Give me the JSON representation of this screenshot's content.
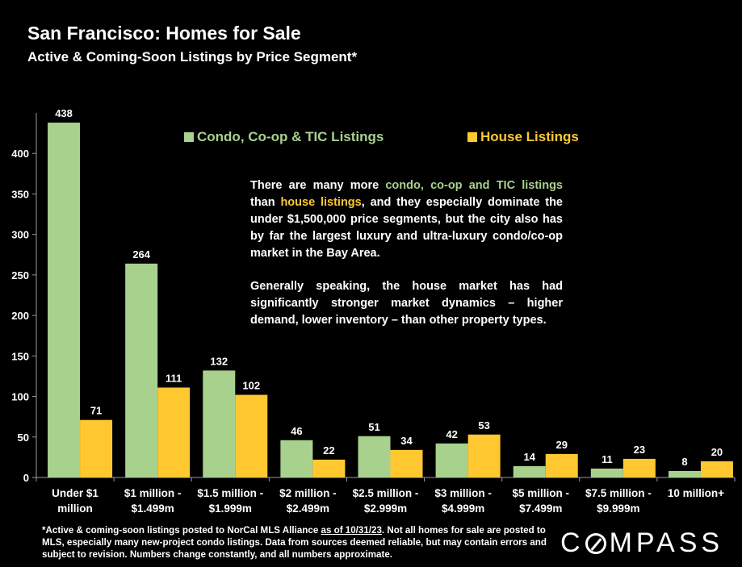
{
  "chart_data": {
    "type": "bar",
    "title": "San Francisco: Homes for Sale",
    "subtitle": "Active & Coming-Soon Listings by Price Segment*",
    "categories": [
      [
        "Under $1",
        "million"
      ],
      [
        "$1 million -",
        "$1.499m"
      ],
      [
        "$1.5 million -",
        "$1.999m"
      ],
      [
        "$2 million -",
        "$2.499m"
      ],
      [
        "$2.5 million -",
        "$2.999m"
      ],
      [
        "$3 million -",
        "$4.999m"
      ],
      [
        "$5 million -",
        "$7.499m"
      ],
      [
        "$7.5 million -",
        "$9.999m"
      ],
      [
        "10 million+"
      ]
    ],
    "series": [
      {
        "name": "Condo, Co-op & TIC Listings",
        "color": "#a9d18e",
        "values": [
          438,
          264,
          132,
          46,
          51,
          42,
          14,
          11,
          8
        ]
      },
      {
        "name": "House Listings",
        "color": "#ffc830",
        "values": [
          71,
          111,
          102,
          22,
          34,
          53,
          29,
          23,
          20
        ]
      }
    ],
    "ylim": [
      0,
      450
    ],
    "yticks": [
      0,
      50,
      100,
      150,
      200,
      250,
      300,
      350,
      400
    ],
    "legend_position": "top-center",
    "grid": false,
    "annotation": {
      "paragraph1": [
        {
          "text": "There are many more ",
          "color": "#ffffff"
        },
        {
          "text": "condo, co-op and TIC listings",
          "color": "#a9d18e"
        },
        {
          "text": " than ",
          "color": "#ffffff"
        },
        {
          "text": "house listings",
          "color": "#ffc830"
        },
        {
          "text": ", and they especially dominate the under $1,500,000 price segments, but the city also has by far the largest luxury and ultra-luxury condo/co-op market in the Bay Area.",
          "color": "#ffffff"
        }
      ],
      "paragraph2": "Generally speaking, the house market has had significantly stronger market dynamics – higher demand, lower inventory – than other property types."
    }
  },
  "footnote": {
    "part1": "*Active & coming-soon listings posted to NorCal MLS Alliance ",
    "underlined": "as of 10/31/23",
    "part2": ". Not all homes for sale are posted to MLS, especially many new-project condo listings. Data from sources deemed reliable, but may contain errors and subject to revision. Numbers change constantly, and all numbers approximate."
  },
  "brand": {
    "before": "C",
    "after": "MPASS"
  }
}
